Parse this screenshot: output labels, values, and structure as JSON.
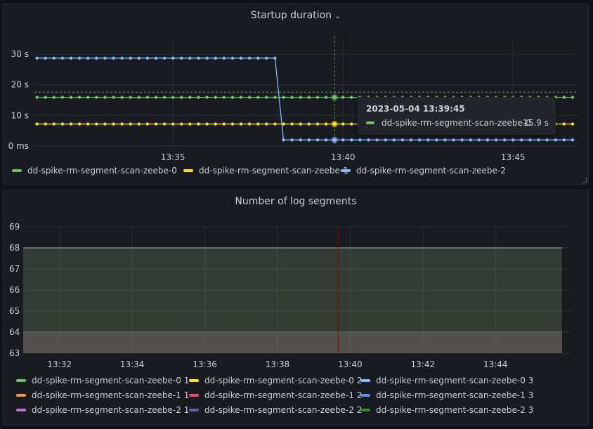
{
  "panels": {
    "startup": {
      "title": "Startup duration"
    },
    "segments": {
      "title": "Number of log segments"
    }
  },
  "tooltip": {
    "time": "2023-05-04 13:39:45",
    "series": "dd-spike-rm-segment-scan-zeebe-0",
    "value": "15.9 s",
    "color": "#73bf69"
  },
  "chart_data": [
    {
      "type": "line",
      "title": "Startup duration",
      "y_unit": "s",
      "ylim": [
        0,
        33
      ],
      "y_ticks": [
        {
          "value": 0,
          "label": "0 ms"
        },
        {
          "value": 10,
          "label": "10 s"
        },
        {
          "value": 20,
          "label": "20 s"
        },
        {
          "value": 30,
          "label": "30 s"
        }
      ],
      "x_range_minutes": [
        13.5,
        14.5
      ],
      "x_ticks": [
        {
          "t": "13:35",
          "label": "13:35"
        },
        {
          "t": "13:40",
          "label": "13:40"
        },
        {
          "t": "13:45",
          "label": "13:45"
        }
      ],
      "x_start": "13:31",
      "x_end": "13:46:45",
      "interval_seconds": 15,
      "grid": true,
      "legend": "bottom",
      "series": [
        {
          "name": "dd-spike-rm-segment-scan-zeebe-0",
          "color": "#73bf69",
          "segments": [
            {
              "from": "13:31",
              "to": "13:46:45",
              "value": 15.9
            }
          ]
        },
        {
          "name": "dd-spike-rm-segment-scan-zeebe-1",
          "color": "#fade2a",
          "segments": [
            {
              "from": "13:31",
              "to": "13:46:45",
              "value": 7.2
            }
          ]
        },
        {
          "name": "dd-spike-rm-segment-scan-zeebe-2",
          "color": "#8ab8ff",
          "segments": [
            {
              "from": "13:31",
              "to": "13:38",
              "value": 28.7
            },
            {
              "from": "13:38:15",
              "to": "13:46:45",
              "value": 2
            }
          ]
        }
      ],
      "hover_time": "13:39:45",
      "threshold_line": 17.6
    },
    {
      "type": "area",
      "title": "Number of log segments",
      "ylim": [
        63,
        69
      ],
      "y_ticks": [
        63,
        64,
        65,
        66,
        67,
        68,
        69
      ],
      "x_ticks": [
        "13:32",
        "13:34",
        "13:36",
        "13:38",
        "13:40",
        "13:42",
        "13:44"
      ],
      "x_start": "13:31",
      "x_end": "13:45:50",
      "grid": true,
      "legend": "bottom",
      "series": [
        {
          "name": "dd-spike-rm-segment-scan-zeebe-0 1",
          "color": "#73bf69",
          "value": 68
        },
        {
          "name": "dd-spike-rm-segment-scan-zeebe-0 2",
          "color": "#fade2a",
          "value": 68
        },
        {
          "name": "dd-spike-rm-segment-scan-zeebe-0 3",
          "color": "#8ab8ff",
          "value": 68
        },
        {
          "name": "dd-spike-rm-segment-scan-zeebe-1 1",
          "color": "#ff9830",
          "value": 64
        },
        {
          "name": "dd-spike-rm-segment-scan-zeebe-1 2",
          "color": "#f2495c",
          "value": 64
        },
        {
          "name": "dd-spike-rm-segment-scan-zeebe-1 3",
          "color": "#5794f2",
          "value": 64
        },
        {
          "name": "dd-spike-rm-segment-scan-zeebe-2 1",
          "color": "#b877d9",
          "value": 64
        },
        {
          "name": "dd-spike-rm-segment-scan-zeebe-2 2",
          "color": "#705da0",
          "value": 64
        },
        {
          "name": "dd-spike-rm-segment-scan-zeebe-2 3",
          "color": "#37872d",
          "value": 64
        }
      ],
      "hover_time": "13:39:40",
      "hover_color": "#8b0000"
    }
  ]
}
